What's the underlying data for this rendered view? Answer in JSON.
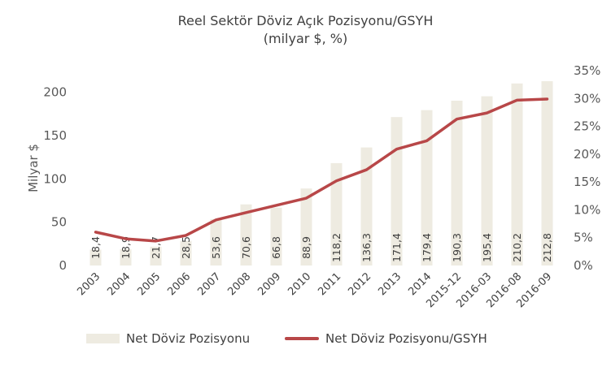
{
  "chart_data": {
    "type": "bar+line",
    "title": "Reel Sektör Döviz Açık Pozisyonu/GSYH",
    "subtitle": "(milyar $, %)",
    "categories": [
      "2003",
      "2004",
      "2005",
      "2006",
      "2007",
      "2008",
      "2009",
      "2010",
      "2011",
      "2012",
      "2013",
      "2014",
      "2015-12",
      "2016-03",
      "2016-08",
      "2016-09"
    ],
    "ylabel": "Milyar $",
    "ylim": [
      0,
      225
    ],
    "yticks": [
      "0",
      "50",
      "100",
      "150",
      "200"
    ],
    "y2lim": [
      0,
      35
    ],
    "y2ticks": [
      "0%",
      "5%",
      "10%",
      "15%",
      "20%",
      "25%",
      "30%",
      "35%"
    ],
    "series": [
      {
        "name": "Net Döviz Pozisyonu",
        "type": "bar",
        "axis": "left",
        "color": "#EEEBE1",
        "values": [
          18.4,
          18.9,
          21.7,
          28.5,
          53.6,
          70.6,
          66.8,
          88.9,
          118.2,
          136.3,
          171.4,
          179.4,
          190.3,
          195.4,
          210.2,
          212.8
        ],
        "labels": [
          "18,4",
          "18,9",
          "21,7",
          "28,5",
          "53,6",
          "70,6",
          "66,8",
          "88,9",
          "118,2",
          "136,3",
          "171,4",
          "179,4",
          "190,3",
          "195,4",
          "210,2",
          "212,8"
        ]
      },
      {
        "name": "Net Döviz Pozisyonu/GSYH",
        "type": "line",
        "axis": "right",
        "color": "#B84748",
        "values": [
          6.0,
          4.8,
          4.4,
          5.4,
          8.2,
          9.5,
          10.8,
          12.1,
          15.2,
          17.2,
          20.9,
          22.4,
          26.3,
          27.4,
          29.7,
          29.9
        ]
      }
    ],
    "grid": false,
    "legend": "bottom"
  }
}
